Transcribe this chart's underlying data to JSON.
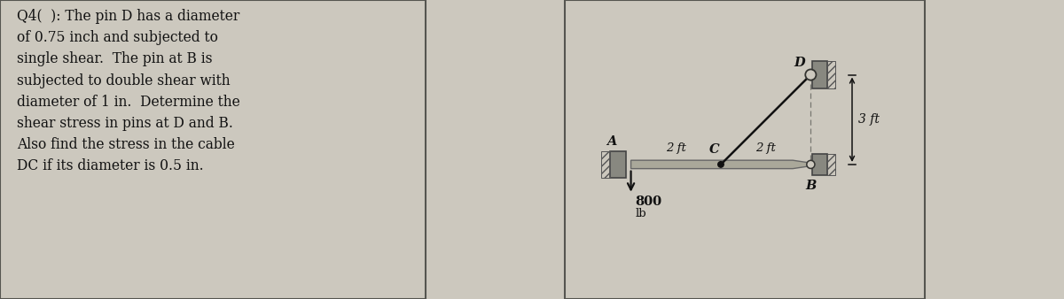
{
  "bg_color": "#ccc8be",
  "panel_bg": "#c8c4b8",
  "text_color": "#111111",
  "wall_color": "#888880",
  "beam_color": "#aaa89a",
  "title_text": "Q4(  ): The pin D has a diameter\nof 0.75 inch and subjected to\nsingle shear.  The pin at B is\nsubjected to double shear with\ndiameter of 1 in.  Determine the\nshear stress in pins at D and B.\nAlso find the stress in the cable\nDC if its diameter is 0.5 in.",
  "label_A": "A",
  "label_B": "B",
  "label_C": "C",
  "label_D": "D",
  "label_2ft_AC": "2 ft",
  "label_2ft_CB": "2 ft",
  "label_3ft": "3 ft",
  "label_800": "800",
  "label_lb": "lb",
  "border_color": "#555550",
  "dim_color": "#111111",
  "cable_color": "#111111",
  "dashed_color": "#777770",
  "pin_face": "#ccc8be",
  "pin_edge": "#333330",
  "dot_color": "#111111",
  "arrow_color": "#111111"
}
